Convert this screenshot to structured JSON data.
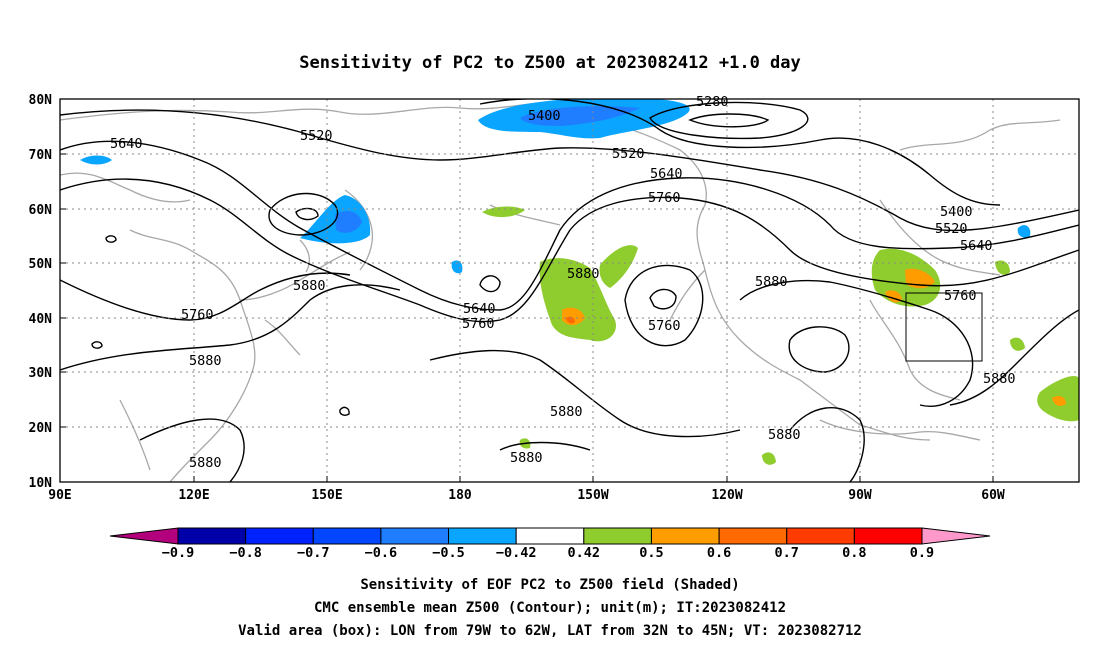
{
  "title": "Sensitivity of PC2 to Z500 at 2023082412 +1.0 day",
  "map": {
    "lat_ticks": [
      "80N",
      "70N",
      "60N",
      "50N",
      "40N",
      "30N",
      "20N",
      "10N"
    ],
    "lon_ticks": [
      "90E",
      "120E",
      "150E",
      "180",
      "150W",
      "120W",
      "90W",
      "60W"
    ],
    "lon_range_deg_east": [
      90,
      330
    ],
    "lat_range": [
      10,
      80
    ],
    "grid": "dotted",
    "valid_box": {
      "lon_w": 79,
      "lon_e": 62,
      "lat_s": 32,
      "lat_n": 45
    }
  },
  "contour_labels": [
    "5640",
    "5520",
    "5400",
    "5280",
    "5520",
    "5640",
    "5760",
    "5400",
    "5520",
    "5640",
    "5760",
    "5880",
    "5880",
    "5760",
    "5880",
    "5640",
    "5760",
    "5760",
    "5880",
    "5880",
    "5880",
    "5880",
    "5880",
    "5880"
  ],
  "colorbar": {
    "labels": [
      "−0.9",
      "−0.8",
      "−0.7",
      "−0.6",
      "−0.5",
      "−0.42",
      "0.42",
      "0.5",
      "0.6",
      "0.7",
      "0.8",
      "0.9"
    ],
    "colors": [
      "#0000a8",
      "#0022ff",
      "#0046ff",
      "#1f7dff",
      "#0aa5ff",
      "#ffffff",
      "#8fcc2e",
      "#ff9c00",
      "#ff6a00",
      "#ff3b00",
      "#ff0000"
    ],
    "low_extend_color": "#b3007d",
    "high_extend_color": "#ff99cc"
  },
  "caption": {
    "line1": "Sensitivity of EOF PC2 to Z500 field (Shaded)",
    "line2": "CMC ensemble mean Z500 (Contour); unit(m); IT:2023082412",
    "line3": "Valid area (box): LON from 79W to 62W, LAT from 32N to 45N; VT: 2023082712"
  }
}
